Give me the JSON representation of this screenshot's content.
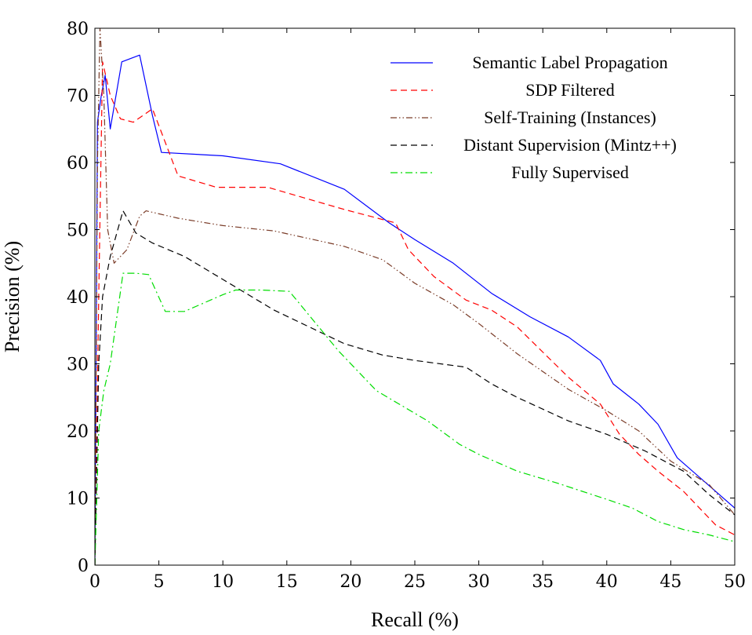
{
  "chart_data": {
    "type": "line",
    "title": "",
    "xlabel": "Recall (%)",
    "ylabel": "Precision (%)",
    "xlim": [
      0,
      50
    ],
    "ylim": [
      0,
      80
    ],
    "xticks": [
      0,
      5,
      10,
      15,
      20,
      25,
      30,
      35,
      40,
      45,
      50
    ],
    "yticks": [
      0,
      10,
      20,
      30,
      40,
      50,
      60,
      70,
      80
    ],
    "grid": false,
    "legend_position": "top-right",
    "series": [
      {
        "name": "Semantic Label Propagation",
        "color": "#0000ff",
        "dash": "solid",
        "x": [
          0,
          0.2,
          0.5,
          0.8,
          1.2,
          2.1,
          3.5,
          4.5,
          5.2,
          10,
          14.5,
          19.5,
          23,
          25,
          28,
          31,
          34,
          37,
          39.5,
          40.5,
          42.5,
          44,
          45.5,
          50
        ],
        "y": [
          0,
          66,
          70,
          73,
          65,
          75,
          76,
          67,
          61.5,
          61,
          59.8,
          56,
          51,
          48.5,
          45,
          40.5,
          37,
          34,
          30.5,
          27,
          24,
          21,
          16,
          8.5
        ]
      },
      {
        "name": "SDP Filtered",
        "color": "#ff0000",
        "dash": "dashed",
        "x": [
          0,
          0.3,
          0.6,
          1.2,
          2,
          3,
          4.5,
          6.5,
          9.5,
          13.5,
          19.5,
          23.5,
          24.5,
          26.5,
          29,
          31,
          33,
          37,
          39.5,
          41,
          42.5,
          44,
          46,
          48.5,
          50
        ],
        "y": [
          0,
          40,
          75,
          70,
          66.5,
          66,
          68,
          58,
          56.3,
          56.3,
          53,
          51,
          47,
          43,
          39.5,
          38,
          35.5,
          28,
          24,
          19.5,
          16.5,
          14,
          11,
          6,
          4.5
        ]
      },
      {
        "name": "Self-Training (Instances)",
        "color": "#7a3c28",
        "dash": "dashdotdot",
        "x": [
          0,
          0.2,
          0.4,
          0.7,
          1,
          1.5,
          2.5,
          3.5,
          4,
          6.5,
          10,
          14,
          19.5,
          22.5,
          25,
          28,
          30,
          33,
          37,
          40,
          42.5,
          45,
          48,
          50
        ],
        "y": [
          0,
          60,
          80,
          70,
          50,
          45,
          47,
          52,
          52.8,
          51.7,
          50.6,
          49.8,
          47.5,
          45.5,
          42,
          38.8,
          36,
          31.5,
          26.2,
          23,
          20,
          15.5,
          12,
          7.5
        ]
      },
      {
        "name": "Distant Supervision (Mintz++)",
        "color": "#000000",
        "dash": "dashed",
        "x": [
          0,
          0.3,
          0.6,
          1.2,
          2.2,
          3.2,
          4.5,
          7,
          10.5,
          14,
          19.5,
          22.5,
          25,
          29,
          31,
          33,
          37,
          40,
          43,
          46,
          48,
          50
        ],
        "y": [
          0,
          30,
          40,
          46,
          52.8,
          49.5,
          48,
          46,
          42,
          38,
          33,
          31.3,
          30.5,
          29.5,
          27,
          25,
          21.5,
          19.5,
          17,
          14,
          10.5,
          7.5
        ]
      },
      {
        "name": "Fully Supervised",
        "color": "#00dd00",
        "dash": "dashdot",
        "x": [
          0,
          0.3,
          0.7,
          1.2,
          2.2,
          3.2,
          4.2,
          5.5,
          7,
          10,
          11,
          13,
          15.2,
          19,
          22,
          26,
          28.5,
          30,
          33,
          36,
          40,
          42,
          44,
          46,
          48,
          50
        ],
        "y": [
          0,
          20,
          26,
          30,
          43.5,
          43.5,
          43.3,
          37.8,
          37.8,
          40.3,
          41,
          41,
          40.8,
          32,
          26,
          21.5,
          18,
          16.5,
          14,
          12.3,
          9.8,
          8.5,
          6.5,
          5.3,
          4.5,
          3.5
        ]
      }
    ]
  }
}
